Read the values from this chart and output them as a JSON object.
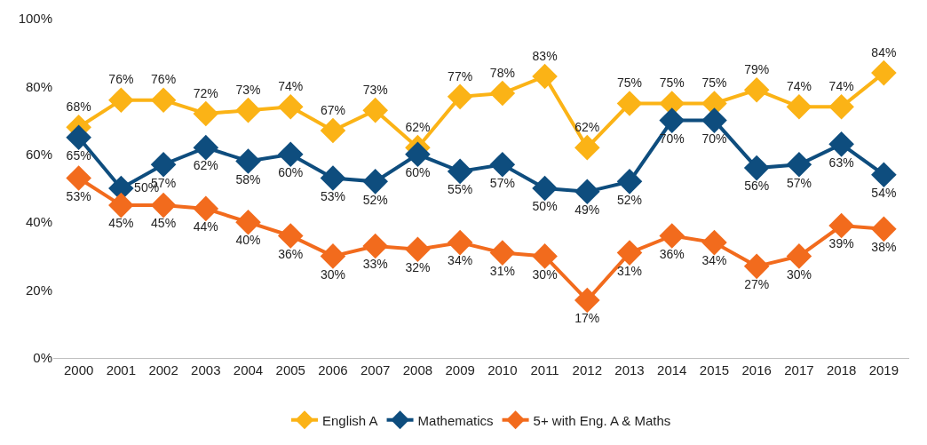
{
  "chart_data": {
    "type": "line",
    "categories": [
      "2000",
      "2001",
      "2002",
      "2003",
      "2004",
      "2005",
      "2006",
      "2007",
      "2008",
      "2009",
      "2010",
      "2011",
      "2012",
      "2013",
      "2014",
      "2015",
      "2016",
      "2017",
      "2018",
      "2019"
    ],
    "series": [
      {
        "name": "English A",
        "color": "#fbb316",
        "values": [
          68,
          76,
          76,
          72,
          73,
          74,
          67,
          73,
          62,
          77,
          78,
          83,
          62,
          75,
          75,
          75,
          79,
          74,
          74,
          84
        ],
        "value_labels": [
          "68%",
          "76%",
          "76%",
          "72%",
          "73%",
          "74%",
          "67%",
          "73%",
          "62%",
          "77%",
          "78%",
          "83%",
          "62%",
          "75%",
          "75%",
          "75%",
          "79%",
          "74%",
          "74%",
          "84%"
        ]
      },
      {
        "name": "Mathematics",
        "color": "#0e4d7e",
        "values": [
          65,
          50,
          57,
          62,
          58,
          60,
          53,
          52,
          60,
          55,
          57,
          50,
          49,
          52,
          70,
          70,
          56,
          57,
          63,
          54
        ],
        "value_labels": [
          "65%",
          "50%",
          "57%",
          "62%",
          "58%",
          "60%",
          "53%",
          "52%",
          "60%",
          "55%",
          "57%",
          "50%",
          "49%",
          "52%",
          "70%",
          "70%",
          "56%",
          "57%",
          "63%",
          "54%"
        ]
      },
      {
        "name": "5+ with Eng. A & Maths",
        "color": "#f26b1d",
        "values": [
          53,
          45,
          45,
          44,
          40,
          36,
          30,
          33,
          32,
          34,
          31,
          30,
          17,
          31,
          36,
          34,
          27,
          30,
          39,
          38
        ],
        "value_labels": [
          "53%",
          "45%",
          "45%",
          "44%",
          "40%",
          "36%",
          "30%",
          "33%",
          "32%",
          "34%",
          "31%",
          "30%",
          "17%",
          "31%",
          "36%",
          "34%",
          "27%",
          "30%",
          "39%",
          "38%"
        ]
      }
    ],
    "ylim": [
      0,
      100
    ],
    "yticks": [
      {
        "value": 0,
        "label": "0%"
      },
      {
        "value": 20,
        "label": "20%"
      },
      {
        "value": 40,
        "label": "40%"
      },
      {
        "value": 60,
        "label": "60%"
      },
      {
        "value": 80,
        "label": "80%"
      },
      {
        "value": 100,
        "label": "100%"
      }
    ],
    "legend": "bottom",
    "marker": "diamond",
    "line_style": "solid"
  }
}
